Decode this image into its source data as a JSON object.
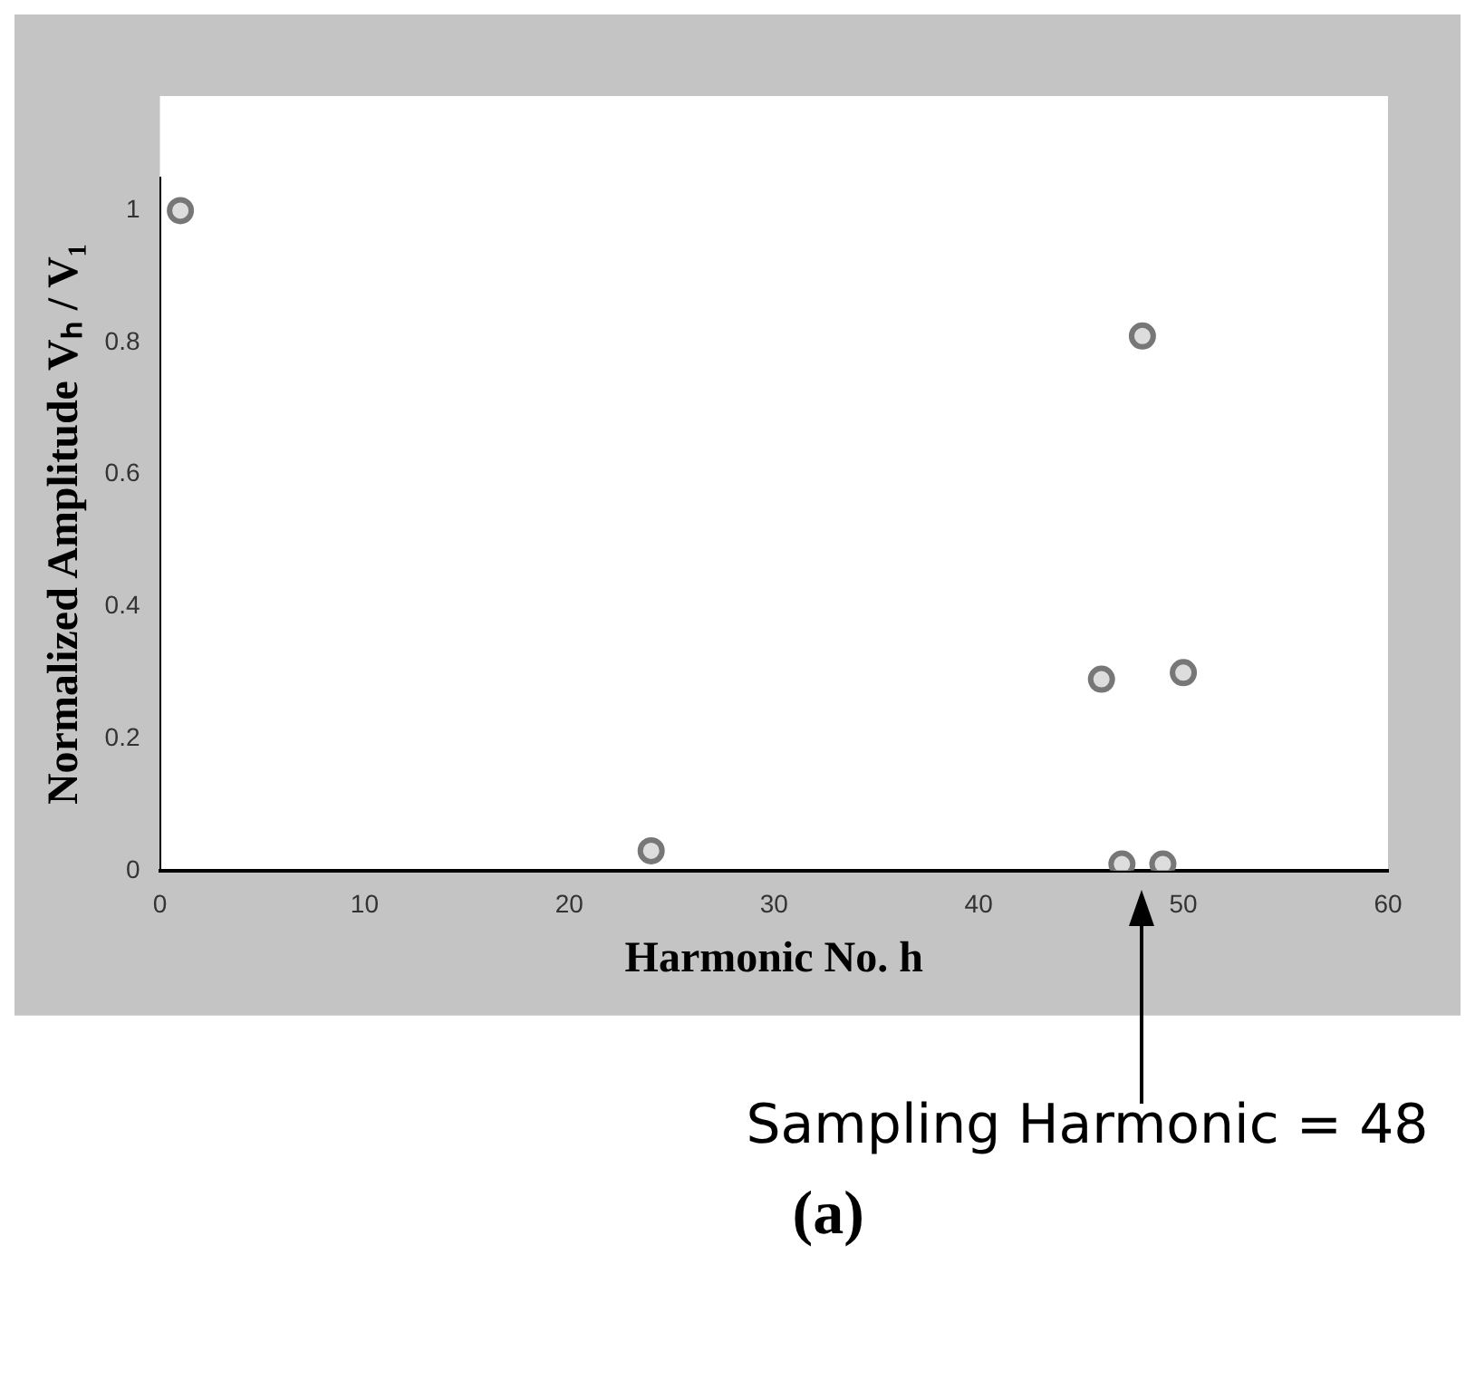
{
  "chart_data": {
    "type": "scatter",
    "xlabel": "Harmonic No. h",
    "ylabel": "Normalized Amplitude Vₕ / V₁",
    "x": [
      1,
      24,
      46,
      47,
      48,
      49,
      50
    ],
    "series": [
      {
        "color": "#777777",
        "values": [
          1.0,
          0.03,
          0.29,
          0.01,
          0.81,
          0.01,
          0.3
        ]
      }
    ],
    "xlim": [
      0,
      60
    ],
    "xticks": [
      0,
      10,
      20,
      30,
      40,
      50,
      60
    ],
    "ylim": [
      0,
      1.05
    ],
    "yticks": [
      0,
      0.2,
      0.4,
      0.6,
      0.8,
      1.0
    ],
    "marker": "circle",
    "grid": false,
    "legend": false,
    "annotations": [
      "Sampling Harmonic = 48",
      "(a)"
    ]
  }
}
